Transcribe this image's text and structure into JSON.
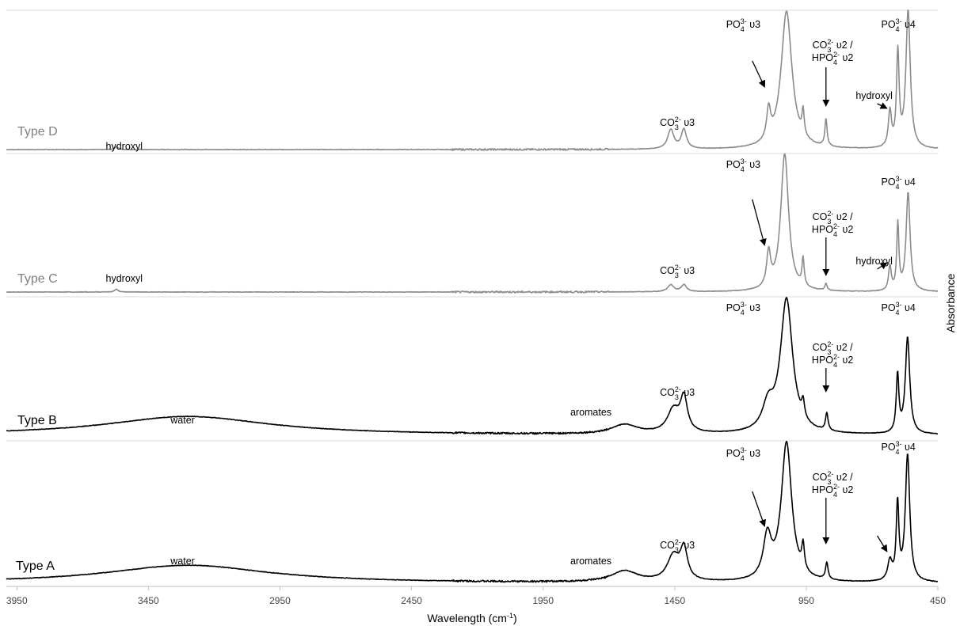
{
  "chart_data": {
    "type": "line",
    "xlabel": "Wavelength (cm",
    "xlabel_sup": "-1",
    "xlabel_end": ")",
    "ylabel": "Absorbance",
    "xlim": [
      3990,
      450
    ],
    "x_reversed": true,
    "x_ticks": [
      3950,
      3450,
      2950,
      2450,
      1950,
      1450,
      950,
      450
    ],
    "grid": "horizontal separators only",
    "colors": {
      "gray": "#8c8c8c",
      "black": "#000000"
    },
    "series": [
      {
        "name": "Type D",
        "color": "#8c8c8c",
        "peaks": [
          {
            "x": 3572,
            "height": 0.02,
            "width": 8
          },
          {
            "x": 1465,
            "height": 0.14,
            "width": 14
          },
          {
            "x": 1415,
            "height": 0.14,
            "width": 12
          },
          {
            "x": 1093,
            "height": 0.22,
            "width": 9
          },
          {
            "x": 1025,
            "height": 1.0,
            "width": 25
          },
          {
            "x": 962,
            "height": 0.18,
            "width": 5
          },
          {
            "x": 875,
            "height": 0.2,
            "width": 5
          },
          {
            "x": 632,
            "height": 0.26,
            "width": 7
          },
          {
            "x": 602,
            "height": 0.68,
            "width": 6
          },
          {
            "x": 563,
            "height": 1.0,
            "width": 10
          }
        ],
        "annotations": [
          {
            "text": "hydroxyl",
            "x": 3570
          },
          {
            "text": "CO3 2- υ3",
            "x": 1440
          },
          {
            "text": "PO4 3- υ3",
            "x": 1118
          },
          {
            "text": "CO3 2- υ2 /",
            "x": 850
          },
          {
            "text": "HPO4 2- υ2",
            "x": 850
          },
          {
            "text": "hydroxyl",
            "x": 692
          },
          {
            "text": "PO4 3- υ4",
            "x": 600
          }
        ]
      },
      {
        "name": "Type C",
        "color": "#8c8c8c",
        "peaks": [
          {
            "x": 3572,
            "height": 0.02,
            "width": 8
          },
          {
            "x": 1465,
            "height": 0.05,
            "width": 14
          },
          {
            "x": 1415,
            "height": 0.05,
            "width": 12
          },
          {
            "x": 1093,
            "height": 0.25,
            "width": 9
          },
          {
            "x": 1032,
            "height": 1.0,
            "width": 18
          },
          {
            "x": 962,
            "height": 0.2,
            "width": 5
          },
          {
            "x": 875,
            "height": 0.05,
            "width": 5
          },
          {
            "x": 632,
            "height": 0.18,
            "width": 6
          },
          {
            "x": 602,
            "height": 0.48,
            "width": 5
          },
          {
            "x": 563,
            "height": 0.72,
            "width": 9
          }
        ],
        "annotations": [
          {
            "text": "hydroxyl",
            "x": 3570
          },
          {
            "text": "CO3 2- υ3",
            "x": 1440
          },
          {
            "text": "PO4 3- υ3",
            "x": 1118
          },
          {
            "text": "CO3 2- υ2 /",
            "x": 850
          },
          {
            "text": "HPO4 2- υ2",
            "x": 850
          },
          {
            "text": "hydroxyl",
            "x": 692
          },
          {
            "text": "PO4 3- υ4",
            "x": 600
          }
        ]
      },
      {
        "name": "Type B",
        "color": "#000000",
        "peaks": [
          {
            "x": 3300,
            "height": 0.14,
            "width": 380
          },
          {
            "x": 1640,
            "height": 0.07,
            "width": 60
          },
          {
            "x": 1455,
            "height": 0.17,
            "width": 28
          },
          {
            "x": 1415,
            "height": 0.25,
            "width": 16
          },
          {
            "x": 1095,
            "height": 0.18,
            "width": 25
          },
          {
            "x": 1025,
            "height": 1.0,
            "width": 28
          },
          {
            "x": 962,
            "height": 0.12,
            "width": 6
          },
          {
            "x": 872,
            "height": 0.13,
            "width": 6
          },
          {
            "x": 603,
            "height": 0.43,
            "width": 6
          },
          {
            "x": 565,
            "height": 0.72,
            "width": 10
          }
        ],
        "annotations": [
          {
            "text": "water",
            "x": 3320
          },
          {
            "text": "aromates",
            "x": 1690
          },
          {
            "text": "CO3 2- υ3",
            "x": 1440
          },
          {
            "text": "PO4 3- υ3",
            "x": 1118
          },
          {
            "text": "CO3 2- υ2 /",
            "x": 850
          },
          {
            "text": "HPO4 2- υ2",
            "x": 850
          },
          {
            "text": "PO4 3- υ4",
            "x": 600
          }
        ]
      },
      {
        "name": "Type A",
        "color": "#000000",
        "peaks": [
          {
            "x": 3300,
            "height": 0.13,
            "width": 380
          },
          {
            "x": 1640,
            "height": 0.08,
            "width": 60
          },
          {
            "x": 1455,
            "height": 0.18,
            "width": 28
          },
          {
            "x": 1415,
            "height": 0.22,
            "width": 16
          },
          {
            "x": 1098,
            "height": 0.3,
            "width": 18
          },
          {
            "x": 1025,
            "height": 1.0,
            "width": 24
          },
          {
            "x": 962,
            "height": 0.18,
            "width": 6
          },
          {
            "x": 872,
            "height": 0.12,
            "width": 6
          },
          {
            "x": 632,
            "height": 0.14,
            "width": 10
          },
          {
            "x": 603,
            "height": 0.55,
            "width": 6
          },
          {
            "x": 565,
            "height": 0.92,
            "width": 10
          }
        ],
        "annotations": [
          {
            "text": "water",
            "x": 3320
          },
          {
            "text": "aromates",
            "x": 1690
          },
          {
            "text": "CO3 2- υ3",
            "x": 1440
          },
          {
            "text": "PO4 3- υ3",
            "x": 1118
          },
          {
            "text": "CO3 2- υ2 /",
            "x": 850
          },
          {
            "text": "HPO4 2- υ2",
            "x": 850
          },
          {
            "text": "PO4 3- υ4",
            "x": 600
          }
        ]
      }
    ]
  }
}
